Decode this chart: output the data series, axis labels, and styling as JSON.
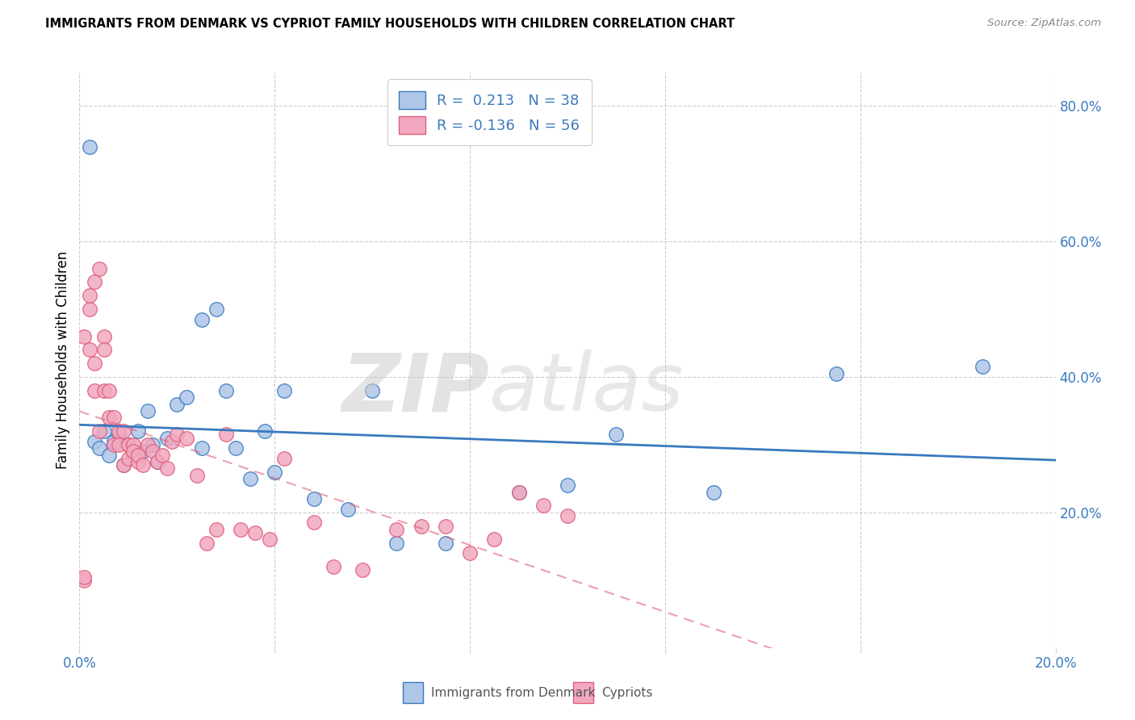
{
  "title": "IMMIGRANTS FROM DENMARK VS CYPRIOT FAMILY HOUSEHOLDS WITH CHILDREN CORRELATION CHART",
  "source": "Source: ZipAtlas.com",
  "xlabel_blue": "Immigrants from Denmark",
  "xlabel_pink": "Cypriots",
  "ylabel": "Family Households with Children",
  "xlim": [
    0.0,
    0.2
  ],
  "ylim": [
    0.0,
    0.85
  ],
  "y_ticks_right": [
    0.2,
    0.4,
    0.6,
    0.8
  ],
  "y_tick_labels_right": [
    "20.0%",
    "40.0%",
    "60.0%",
    "80.0%"
  ],
  "legend_R_blue": "0.213",
  "legend_N_blue": "38",
  "legend_R_pink": "-0.136",
  "legend_N_pink": "56",
  "color_blue": "#aec6e8",
  "color_pink": "#f2a8c0",
  "line_color_blue": "#3a7abf",
  "line_color_pink": "#e0607a",
  "blue_points_x": [
    0.002,
    0.003,
    0.004,
    0.005,
    0.006,
    0.007,
    0.008,
    0.009,
    0.01,
    0.011,
    0.012,
    0.013,
    0.014,
    0.015,
    0.016,
    0.018,
    0.02,
    0.022,
    0.025,
    0.028,
    0.03,
    0.035,
    0.038,
    0.042,
    0.048,
    0.055,
    0.06,
    0.065,
    0.075,
    0.09,
    0.1,
    0.11,
    0.13,
    0.155,
    0.185,
    0.025,
    0.032,
    0.04
  ],
  "blue_points_y": [
    0.74,
    0.305,
    0.295,
    0.32,
    0.285,
    0.305,
    0.315,
    0.27,
    0.3,
    0.285,
    0.32,
    0.29,
    0.35,
    0.3,
    0.275,
    0.31,
    0.36,
    0.37,
    0.485,
    0.5,
    0.38,
    0.25,
    0.32,
    0.38,
    0.22,
    0.205,
    0.38,
    0.155,
    0.155,
    0.23,
    0.24,
    0.315,
    0.23,
    0.405,
    0.415,
    0.295,
    0.295,
    0.26
  ],
  "pink_points_x": [
    0.001,
    0.001,
    0.002,
    0.002,
    0.002,
    0.003,
    0.003,
    0.003,
    0.004,
    0.004,
    0.005,
    0.005,
    0.005,
    0.006,
    0.006,
    0.007,
    0.007,
    0.008,
    0.008,
    0.009,
    0.009,
    0.01,
    0.01,
    0.011,
    0.011,
    0.012,
    0.012,
    0.013,
    0.014,
    0.015,
    0.016,
    0.017,
    0.018,
    0.019,
    0.02,
    0.022,
    0.024,
    0.026,
    0.028,
    0.03,
    0.033,
    0.036,
    0.039,
    0.042,
    0.048,
    0.052,
    0.058,
    0.065,
    0.07,
    0.075,
    0.08,
    0.085,
    0.09,
    0.095,
    0.1,
    0.001
  ],
  "pink_points_y": [
    0.46,
    0.1,
    0.44,
    0.5,
    0.52,
    0.42,
    0.38,
    0.54,
    0.56,
    0.32,
    0.38,
    0.46,
    0.44,
    0.38,
    0.34,
    0.34,
    0.3,
    0.32,
    0.3,
    0.32,
    0.27,
    0.3,
    0.28,
    0.3,
    0.29,
    0.275,
    0.285,
    0.27,
    0.3,
    0.29,
    0.275,
    0.285,
    0.265,
    0.305,
    0.315,
    0.31,
    0.255,
    0.155,
    0.175,
    0.315,
    0.175,
    0.17,
    0.16,
    0.28,
    0.185,
    0.12,
    0.115,
    0.175,
    0.18,
    0.18,
    0.14,
    0.16,
    0.23,
    0.21,
    0.195,
    0.105
  ]
}
